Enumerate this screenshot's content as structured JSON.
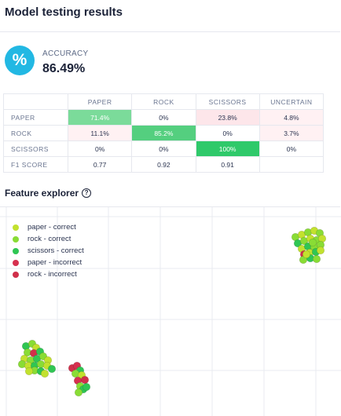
{
  "header": {
    "title": "Model testing results"
  },
  "accuracy": {
    "icon": "percent-icon",
    "glyph": "%",
    "label": "ACCURACY",
    "value": "86.49%"
  },
  "confusion_matrix": {
    "columns": [
      "PAPER",
      "ROCK",
      "SCISSORS",
      "UNCERTAIN"
    ],
    "rows": [
      {
        "label": "PAPER",
        "cells": [
          "71.4%",
          "0%",
          "23.8%",
          "4.8%"
        ]
      },
      {
        "label": "ROCK",
        "cells": [
          "11.1%",
          "85.2%",
          "0%",
          "3.7%"
        ]
      },
      {
        "label": "SCISSORS",
        "cells": [
          "0%",
          "0%",
          "100%",
          "0%"
        ]
      },
      {
        "label": "F1 SCORE",
        "cells": [
          "0.77",
          "0.92",
          "0.91",
          ""
        ]
      }
    ]
  },
  "feature_explorer": {
    "title": "Feature explorer",
    "help_icon": "question-circle-icon",
    "legend": [
      {
        "label": "paper - correct",
        "color": "#c2e12e"
      },
      {
        "label": "rock - correct",
        "color": "#89dc35"
      },
      {
        "label": "scissors - correct",
        "color": "#2fc653"
      },
      {
        "label": "paper - incorrect",
        "color": "#d6304f"
      },
      {
        "label": "rock - incorrect",
        "color": "#d02f4a"
      }
    ]
  }
}
